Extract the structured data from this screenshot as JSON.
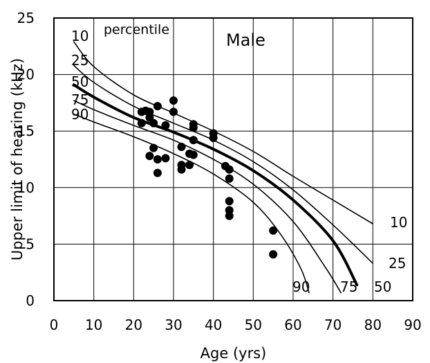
{
  "chart_data": {
    "type": "scatter",
    "title": "",
    "xlabel": "Age (yrs)",
    "ylabel": "Upper limit of hearing (kHz)",
    "xlim": [
      0,
      90
    ],
    "ylim": [
      0,
      25
    ],
    "xticks": [
      0,
      10,
      20,
      30,
      40,
      50,
      60,
      70,
      80,
      90
    ],
    "yticks": [
      0,
      5,
      10,
      15,
      20,
      25
    ],
    "grid": true,
    "annotations": [
      {
        "text": "percentile",
        "style": "small"
      },
      {
        "text": "Male",
        "style": "large"
      }
    ],
    "percentile_curves": [
      {
        "label": "10",
        "emphasis": false,
        "points": [
          [
            5,
            22.9
          ],
          [
            10,
            20.7
          ],
          [
            20,
            18.2
          ],
          [
            30,
            16.6
          ],
          [
            40,
            15.0
          ],
          [
            50,
            13.2
          ],
          [
            60,
            11.0
          ],
          [
            70,
            8.9
          ],
          [
            80,
            6.8
          ]
        ]
      },
      {
        "label": "25",
        "emphasis": false,
        "points": [
          [
            5,
            20.8
          ],
          [
            10,
            19.3
          ],
          [
            20,
            17.2
          ],
          [
            30,
            15.7
          ],
          [
            40,
            14.2
          ],
          [
            50,
            12.3
          ],
          [
            60,
            9.8
          ],
          [
            70,
            6.7
          ],
          [
            80,
            3.3
          ]
        ]
      },
      {
        "label": "50",
        "emphasis": true,
        "points": [
          [
            5,
            19.1
          ],
          [
            10,
            18.0
          ],
          [
            20,
            16.2
          ],
          [
            30,
            14.9
          ],
          [
            40,
            13.4
          ],
          [
            50,
            11.5
          ],
          [
            60,
            8.9
          ],
          [
            70,
            5.3
          ],
          [
            76,
            1.4
          ]
        ]
      },
      {
        "label": "75",
        "emphasis": false,
        "points": [
          [
            5,
            17.7
          ],
          [
            10,
            16.9
          ],
          [
            20,
            15.5
          ],
          [
            30,
            14.2
          ],
          [
            40,
            12.5
          ],
          [
            50,
            10.3
          ],
          [
            60,
            7.0
          ],
          [
            68,
            3.0
          ],
          [
            72,
            0.7
          ]
        ]
      },
      {
        "label": "90",
        "emphasis": false,
        "points": [
          [
            5,
            16.5
          ],
          [
            10,
            15.8
          ],
          [
            20,
            14.5
          ],
          [
            30,
            13.0
          ],
          [
            40,
            11.2
          ],
          [
            50,
            8.7
          ],
          [
            57,
            5.8
          ],
          [
            62,
            2.8
          ],
          [
            64,
            0.7
          ]
        ]
      }
    ],
    "series": [
      {
        "points": [
          [
            22,
            16.7
          ],
          [
            22,
            15.7
          ],
          [
            23,
            16.8
          ],
          [
            24,
            16.7
          ],
          [
            24,
            16.2
          ],
          [
            24,
            12.8
          ],
          [
            25,
            15.7
          ],
          [
            25,
            13.5
          ],
          [
            26,
            17.2
          ],
          [
            26,
            12.5
          ],
          [
            26,
            11.3
          ],
          [
            28,
            15.5
          ],
          [
            28,
            12.6
          ],
          [
            30,
            17.7
          ],
          [
            30,
            16.7
          ],
          [
            32,
            13.6
          ],
          [
            32,
            12.0
          ],
          [
            32,
            11.6
          ],
          [
            34,
            13.0
          ],
          [
            34,
            12.0
          ],
          [
            35,
            15.6
          ],
          [
            35,
            15.3
          ],
          [
            35,
            14.2
          ],
          [
            35,
            12.9
          ],
          [
            40,
            14.8
          ],
          [
            40,
            14.4
          ],
          [
            43,
            11.9
          ],
          [
            44,
            11.6
          ],
          [
            44,
            10.8
          ],
          [
            44,
            8.8
          ],
          [
            44,
            8.0
          ],
          [
            44,
            7.5
          ],
          [
            55,
            6.2
          ],
          [
            55,
            4.1
          ]
        ]
      }
    ]
  }
}
